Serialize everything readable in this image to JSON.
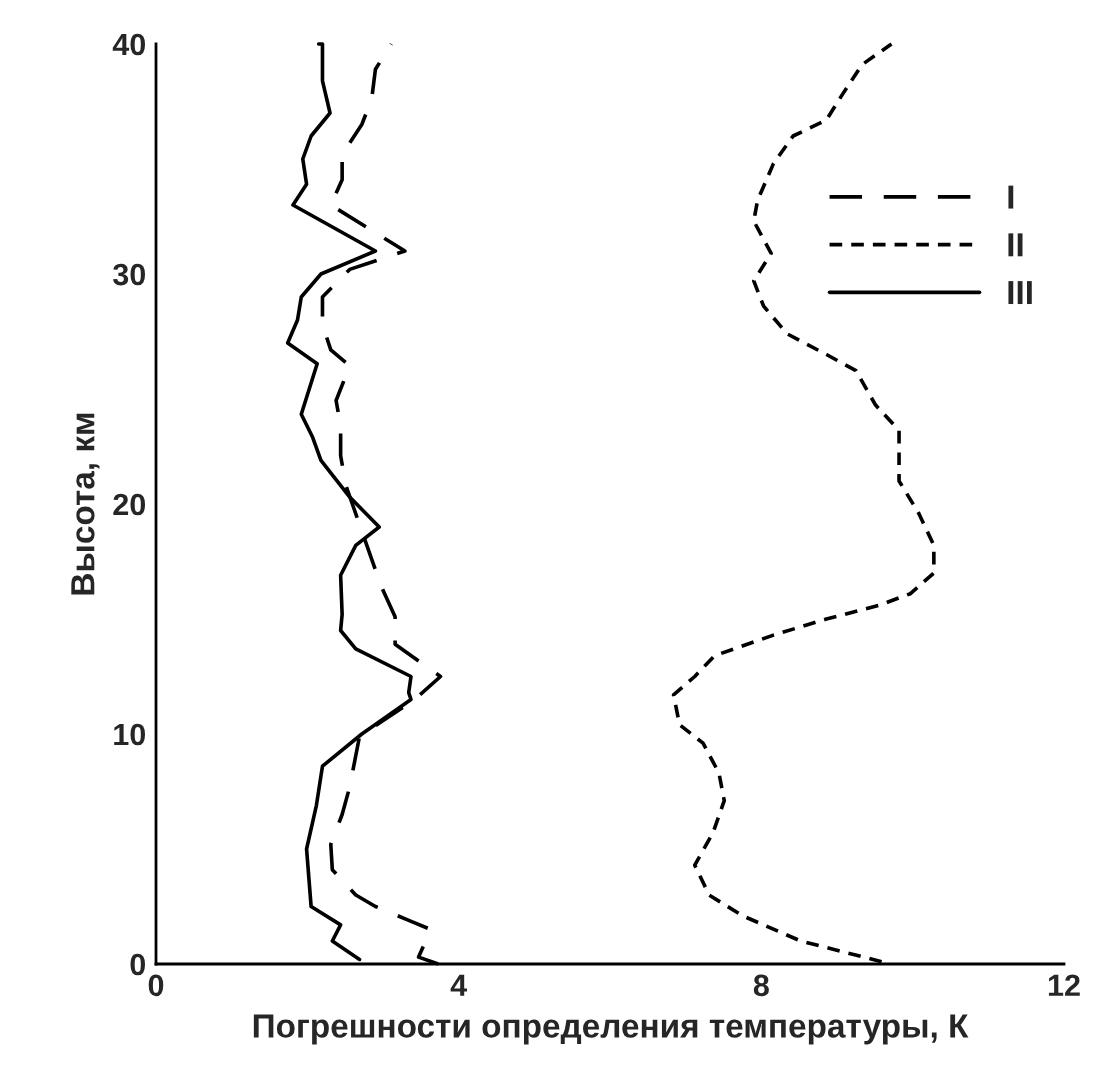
{
  "chart_data": {
    "type": "line",
    "xlabel": "Погрешности определения температуры, К",
    "ylabel": "Высота, км",
    "xlim": [
      0,
      12
    ],
    "xticks": [
      0,
      4,
      8,
      12
    ],
    "ylim": [
      0,
      40
    ],
    "yticks": [
      0,
      10,
      20,
      30,
      40
    ],
    "grid": false,
    "legend": "top right",
    "marker": "none",
    "series": [
      {
        "name": "I",
        "color": "#000000",
        "line_style": "dashed",
        "x": [
          3.73,
          3.47,
          3.63,
          3.34,
          2.9,
          2.64,
          2.33,
          2.31,
          2.46,
          2.56,
          2.69,
          3.42,
          3.76,
          3.16,
          3.16,
          2.98,
          2.85,
          2.51,
          2.44,
          2.44,
          2.38,
          2.56,
          2.31,
          2.2,
          2.2,
          2.56,
          3.29,
          2.31,
          2.46,
          2.46,
          2.72,
          2.85,
          2.9,
          3.11
        ],
        "values": [
          0,
          0.3,
          1.5,
          1.9,
          2.5,
          3.0,
          4.1,
          5.2,
          6.5,
          7.7,
          9.9,
          11.5,
          12.5,
          13.9,
          15.1,
          16.4,
          17.6,
          20.8,
          22.1,
          23.4,
          24.5,
          26.0,
          26.7,
          27.8,
          29.0,
          30.2,
          31.0,
          33.0,
          34.1,
          35.2,
          36.5,
          37.6,
          38.9,
          40.0
        ]
      },
      {
        "name": "II",
        "color": "#000000",
        "line_style": "dotted",
        "x": [
          9.59,
          8.52,
          7.75,
          7.31,
          7.12,
          7.36,
          7.51,
          7.44,
          7.23,
          6.92,
          6.84,
          7.12,
          7.38,
          8.16,
          8.86,
          9.56,
          9.97,
          10.28,
          10.28,
          10.08,
          9.82,
          9.82,
          9.82,
          9.51,
          9.25,
          8.86,
          8.34,
          8.03,
          7.9,
          8.13,
          7.9,
          7.95,
          8.16,
          8.42,
          8.86,
          9.07,
          9.33,
          9.72
        ],
        "values": [
          0.1,
          1.0,
          2.1,
          3.0,
          4.3,
          5.7,
          7.1,
          8.3,
          9.6,
          10.4,
          11.7,
          12.5,
          13.4,
          14.3,
          15.0,
          15.6,
          16.1,
          17.0,
          18.2,
          19.6,
          21.0,
          21.7,
          23.2,
          24.3,
          25.8,
          26.5,
          27.4,
          28.6,
          29.7,
          30.9,
          32.3,
          33.2,
          34.8,
          36.0,
          36.7,
          37.8,
          39.1,
          40.0
        ]
      },
      {
        "name": "III",
        "color": "#000000",
        "line_style": "solid",
        "x": [
          2.69,
          2.33,
          2.44,
          2.05,
          1.99,
          2.12,
          2.2,
          2.72,
          3.37,
          3.34,
          3.37,
          2.64,
          2.44,
          2.46,
          2.44,
          2.64,
          2.95,
          2.56,
          2.18,
          2.07,
          1.92,
          2.13,
          1.74,
          1.87,
          1.92,
          2.18,
          2.9,
          1.81,
          1.99,
          1.94,
          2.05,
          2.3,
          2.2,
          2.2,
          2.15
        ],
        "values": [
          0.2,
          1.0,
          1.7,
          2.5,
          5.0,
          6.9,
          8.6,
          10.0,
          11.5,
          11.8,
          12.5,
          13.7,
          14.5,
          15.2,
          16.9,
          18.2,
          19.0,
          20.3,
          21.9,
          22.9,
          23.9,
          26.1,
          27.0,
          28.0,
          29.0,
          30.0,
          31.0,
          33.0,
          33.9,
          35.0,
          36.0,
          37.0,
          38.4,
          40.0,
          40.0
        ]
      }
    ]
  }
}
